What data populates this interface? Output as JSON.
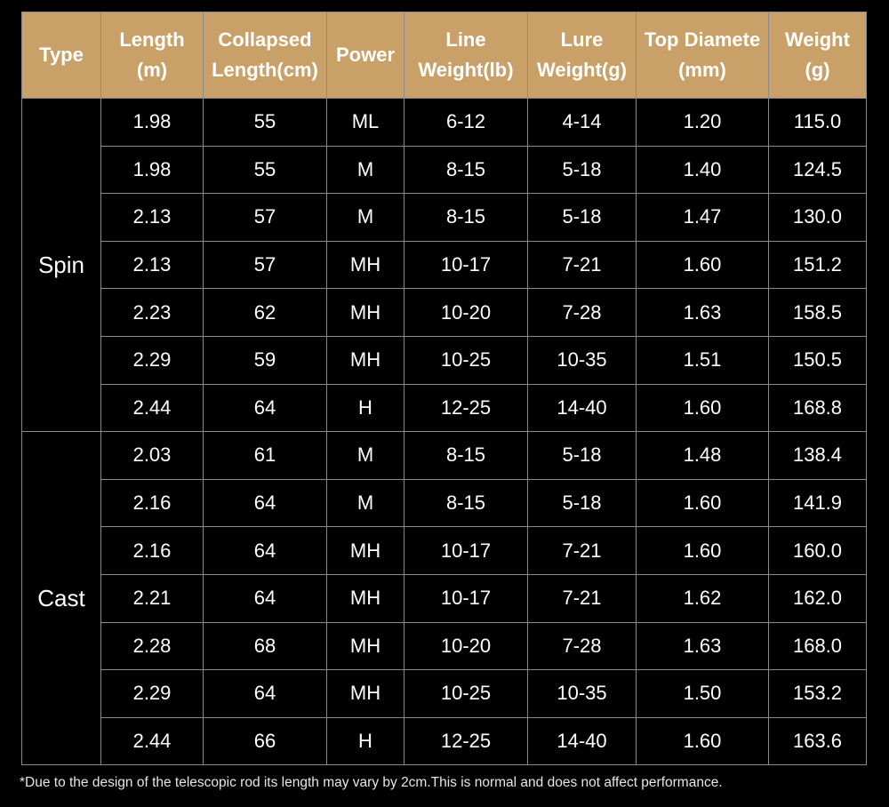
{
  "table": {
    "header": [
      "Type",
      "Length\n(m)",
      "Collapsed\nLength(cm)",
      "Power",
      "Line\nWeight(lb)",
      "Lure\nWeight(g)",
      "Top Diamete\n(mm)",
      "Weight\n(g)"
    ],
    "groups": [
      {
        "type": "Spin",
        "rows": [
          [
            "1.98",
            "55",
            "ML",
            "6-12",
            "4-14",
            "1.20",
            "115.0"
          ],
          [
            "1.98",
            "55",
            "M",
            "8-15",
            "5-18",
            "1.40",
            "124.5"
          ],
          [
            "2.13",
            "57",
            "M",
            "8-15",
            "5-18",
            "1.47",
            "130.0"
          ],
          [
            "2.13",
            "57",
            "MH",
            "10-17",
            "7-21",
            "1.60",
            "151.2"
          ],
          [
            "2.23",
            "62",
            "MH",
            "10-20",
            "7-28",
            "1.63",
            "158.5"
          ],
          [
            "2.29",
            "59",
            "MH",
            "10-25",
            "10-35",
            "1.51",
            "150.5"
          ],
          [
            "2.44",
            "64",
            "H",
            "12-25",
            "14-40",
            "1.60",
            "168.8"
          ]
        ]
      },
      {
        "type": "Cast",
        "rows": [
          [
            "2.03",
            "61",
            "M",
            "8-15",
            "5-18",
            "1.48",
            "138.4"
          ],
          [
            "2.16",
            "64",
            "M",
            "8-15",
            "5-18",
            "1.60",
            "141.9"
          ],
          [
            "2.16",
            "64",
            "MH",
            "10-17",
            "7-21",
            "1.60",
            "160.0"
          ],
          [
            "2.21",
            "64",
            "MH",
            "10-17",
            "7-21",
            "1.62",
            "162.0"
          ],
          [
            "2.28",
            "68",
            "MH",
            "10-20",
            "7-28",
            "1.63",
            "168.0"
          ],
          [
            "2.29",
            "64",
            "MH",
            "10-25",
            "10-35",
            "1.50",
            "153.2"
          ],
          [
            "2.44",
            "66",
            "H",
            "12-25",
            "14-40",
            "1.60",
            "163.6"
          ]
        ]
      }
    ]
  },
  "footnote": "*Due to the design of the telescopic rod its length may vary by 2cm.This is normal and does not affect performance."
}
